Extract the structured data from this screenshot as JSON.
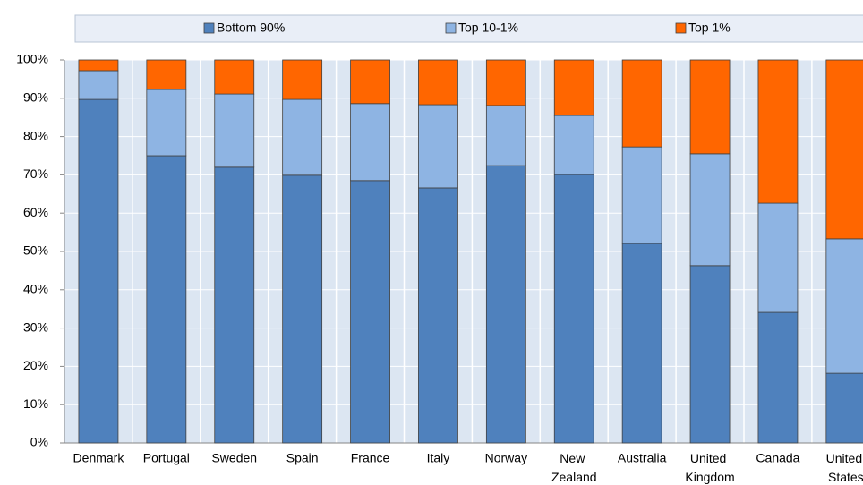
{
  "chart_data": {
    "type": "stacked-bar",
    "categories": [
      "Denmark",
      "Portugal",
      "Sweden",
      "Spain",
      "France",
      "Italy",
      "Norway",
      "New Zealand",
      "Australia",
      "United Kingdom",
      "Canada",
      "United States"
    ],
    "series": [
      {
        "name": "Bottom 90%",
        "color": "#4f81bd",
        "values": [
          89.7,
          75.0,
          72.0,
          69.9,
          68.5,
          66.6,
          72.4,
          70.1,
          52.1,
          46.3,
          34.1,
          18.2
        ]
      },
      {
        "name": "Top 10-1%",
        "color": "#8eb4e3",
        "values": [
          7.5,
          17.3,
          19.1,
          19.8,
          20.1,
          21.7,
          15.7,
          15.4,
          25.2,
          29.2,
          28.5,
          35.1
        ]
      },
      {
        "name": "Top 1%",
        "color": "#ff6600",
        "values": [
          2.8,
          7.7,
          8.9,
          10.3,
          11.4,
          11.7,
          11.9,
          14.5,
          22.7,
          24.5,
          37.4,
          46.7
        ]
      }
    ],
    "ylim": [
      0,
      100
    ],
    "yticks": [
      {
        "value": 0,
        "label": "0%"
      },
      {
        "value": 10,
        "label": "10%"
      },
      {
        "value": 20,
        "label": "20%"
      },
      {
        "value": 30,
        "label": "30%"
      },
      {
        "value": 40,
        "label": "40%"
      },
      {
        "value": 50,
        "label": "50%"
      },
      {
        "value": 60,
        "label": "60%"
      },
      {
        "value": 70,
        "label": "70%"
      },
      {
        "value": 80,
        "label": "80%"
      },
      {
        "value": 90,
        "label": "90%"
      },
      {
        "value": 100,
        "label": "100%"
      }
    ],
    "grid": true,
    "legend": "top"
  }
}
